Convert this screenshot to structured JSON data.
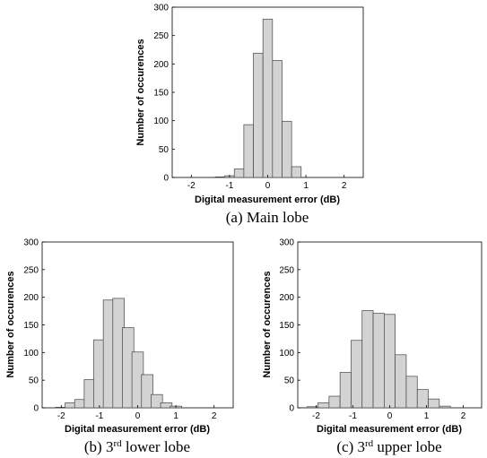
{
  "chart_data": [
    {
      "type": "bar",
      "caption": "(a) Main lobe",
      "xlabel": "Digital measurement error (dB)",
      "ylabel": "Number of occurences",
      "xlim": [
        -2.5,
        2.5
      ],
      "ylim": [
        0,
        300
      ],
      "xticks": [
        "-2",
        "-1",
        "0",
        "1",
        "2"
      ],
      "yticks": [
        "0",
        "50",
        "100",
        "150",
        "200",
        "250",
        "300"
      ],
      "bin_centers": [
        -1.5,
        -1.25,
        -1.0,
        -0.75,
        -0.5,
        -0.25,
        0.0,
        0.25,
        0.5,
        0.75,
        1.0,
        1.25
      ],
      "bin_width": 0.25,
      "values": [
        0,
        1,
        3,
        15,
        93,
        219,
        279,
        206,
        99,
        19,
        0,
        0
      ],
      "grid": false,
      "bar_color": "#d3d3d3"
    },
    {
      "type": "bar",
      "caption": "(b) 3rd lower lobe",
      "xlabel": "Digital measurement error (dB)",
      "ylabel": "Number of occurences",
      "xlim": [
        -2.5,
        2.5
      ],
      "ylim": [
        0,
        300
      ],
      "xticks": [
        "-2",
        "-1",
        "0",
        "1",
        "2"
      ],
      "yticks": [
        "0",
        "50",
        "100",
        "150",
        "200",
        "250",
        "300"
      ],
      "bin_centers": [
        -2.0,
        -1.75,
        -1.5,
        -1.25,
        -1.0,
        -0.75,
        -0.5,
        -0.25,
        0.0,
        0.25,
        0.5,
        0.75,
        1.0,
        1.25,
        1.5,
        1.75,
        2.0
      ],
      "bin_width": 0.3,
      "values": [
        1,
        9,
        15,
        51,
        123,
        195,
        198,
        145,
        101,
        60,
        24,
        9,
        3,
        0,
        0,
        0,
        0
      ],
      "grid": false,
      "bar_color": "#d3d3d3"
    },
    {
      "type": "bar",
      "caption": "(c) 3rd upper lobe",
      "xlabel": "Digital measurement error (dB)",
      "ylabel": "Number of occurences",
      "xlim": [
        -2.5,
        2.5
      ],
      "ylim": [
        0,
        300
      ],
      "xticks": [
        "-2",
        "-1",
        "0",
        "1",
        "2"
      ],
      "yticks": [
        "0",
        "50",
        "100",
        "150",
        "200",
        "250",
        "300"
      ],
      "bin_centers": [
        -2.1,
        -1.8,
        -1.5,
        -1.2,
        -0.9,
        -0.6,
        -0.3,
        0.0,
        0.3,
        0.6,
        0.9,
        1.2,
        1.5,
        1.8,
        2.1
      ],
      "bin_width": 0.3,
      "values": [
        2,
        9,
        21,
        64,
        122,
        176,
        171,
        169,
        96,
        57,
        33,
        16,
        3,
        0,
        0
      ],
      "grid": false,
      "bar_color": "#d3d3d3"
    }
  ]
}
